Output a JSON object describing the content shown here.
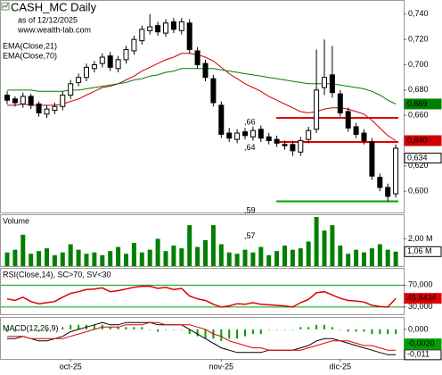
{
  "chart_data": [
    {
      "type": "candlestick",
      "title": "CASH_MC Daily",
      "subtitle": "as of 12/12/2025",
      "source": "www.wealth-lab.com",
      "categories": [
        null,
        null,
        null,
        null,
        null,
        null,
        null,
        null,
        "oct-25",
        null,
        null,
        null,
        null,
        null,
        null,
        null,
        null,
        null,
        null,
        null,
        null,
        null,
        null,
        null,
        null,
        null,
        null,
        "nov-25",
        null,
        null,
        null,
        null,
        null,
        null,
        null,
        null,
        null,
        null,
        null,
        null,
        null,
        null,
        "dic-25",
        null,
        null,
        null,
        null,
        null,
        null,
        null
      ],
      "open": [
        0.676,
        0.673,
        0.669,
        0.675,
        0.669,
        0.661,
        0.664,
        0.667,
        0.676,
        0.686,
        0.69,
        0.697,
        0.701,
        0.707,
        0.697,
        0.704,
        0.711,
        0.719,
        0.727,
        0.731,
        0.725,
        0.734,
        0.727,
        0.733,
        0.711,
        0.701,
        0.689,
        0.668,
        0.646,
        0.641,
        0.647,
        0.643,
        0.649,
        0.643,
        0.641,
        0.637,
        0.637,
        0.631,
        0.641,
        0.649,
        0.682,
        0.692,
        0.677,
        0.663,
        0.651,
        0.646,
        0.639,
        0.611,
        0.603,
        0.598
      ],
      "high": [
        0.679,
        0.675,
        0.678,
        0.677,
        0.671,
        0.668,
        0.67,
        0.679,
        0.688,
        0.693,
        0.701,
        0.703,
        0.709,
        0.71,
        0.707,
        0.715,
        0.723,
        0.731,
        0.74,
        0.734,
        0.736,
        0.737,
        0.737,
        0.736,
        0.714,
        0.704,
        0.692,
        0.671,
        0.65,
        0.649,
        0.65,
        0.651,
        0.652,
        0.646,
        0.644,
        0.64,
        0.64,
        0.643,
        0.651,
        0.712,
        0.72,
        0.715,
        0.68,
        0.666,
        0.654,
        0.649,
        0.642,
        0.614,
        0.606,
        0.637
      ],
      "low": [
        0.669,
        0.667,
        0.666,
        0.665,
        0.659,
        0.658,
        0.661,
        0.664,
        0.673,
        0.683,
        0.687,
        0.694,
        0.698,
        0.695,
        0.694,
        0.701,
        0.708,
        0.716,
        0.724,
        0.723,
        0.722,
        0.725,
        0.724,
        0.709,
        0.697,
        0.687,
        0.667,
        0.642,
        0.639,
        0.638,
        0.641,
        0.64,
        0.639,
        0.637,
        0.635,
        0.633,
        0.628,
        0.628,
        0.638,
        0.646,
        0.676,
        0.674,
        0.659,
        0.647,
        0.642,
        0.637,
        0.609,
        0.6,
        0.592,
        0.595
      ],
      "close": [
        0.672,
        0.67,
        0.675,
        0.668,
        0.662,
        0.665,
        0.667,
        0.676,
        0.685,
        0.69,
        0.698,
        0.7,
        0.706,
        0.698,
        0.704,
        0.712,
        0.72,
        0.728,
        0.73,
        0.726,
        0.733,
        0.728,
        0.734,
        0.712,
        0.7,
        0.69,
        0.67,
        0.645,
        0.642,
        0.646,
        0.644,
        0.648,
        0.642,
        0.64,
        0.638,
        0.636,
        0.632,
        0.64,
        0.648,
        0.68,
        0.69,
        0.678,
        0.662,
        0.65,
        0.645,
        0.64,
        0.612,
        0.603,
        0.596,
        0.634
      ],
      "last_label": "0,634",
      "ylim": [
        0.5832,
        0.7505
      ],
      "yticks": [
        {
          "value": 0.74,
          "label": "0,740"
        },
        {
          "value": 0.72,
          "label": "0,720"
        },
        {
          "value": 0.7,
          "label": "0,700"
        },
        {
          "value": 0.68,
          "label": "0,680"
        },
        {
          "value": 0.66,
          "label": "0,660"
        },
        {
          "value": 0.62,
          "label": "0,620"
        },
        {
          "value": 0.6,
          "label": "0,600"
        }
      ],
      "series": [
        {
          "name": "EMA(Close,21)",
          "color": "#d00000",
          "last_label": "0,640",
          "values": [
            0.668,
            0.668,
            0.669,
            0.668,
            0.668,
            0.668,
            0.668,
            0.669,
            0.671,
            0.673,
            0.676,
            0.679,
            0.682,
            0.683,
            0.685,
            0.688,
            0.691,
            0.695,
            0.698,
            0.701,
            0.704,
            0.706,
            0.709,
            0.709,
            0.708,
            0.706,
            0.703,
            0.698,
            0.693,
            0.689,
            0.685,
            0.682,
            0.679,
            0.675,
            0.672,
            0.669,
            0.666,
            0.663,
            0.662,
            0.663,
            0.665,
            0.666,
            0.666,
            0.665,
            0.663,
            0.661,
            0.656,
            0.65,
            0.644,
            0.64
          ]
        },
        {
          "name": "EMA(Close,70)",
          "color": "#008000",
          "last_label": "0,669",
          "values": [
            0.68,
            0.68,
            0.68,
            0.68,
            0.679,
            0.679,
            0.679,
            0.679,
            0.68,
            0.68,
            0.681,
            0.682,
            0.683,
            0.684,
            0.685,
            0.686,
            0.688,
            0.689,
            0.691,
            0.692,
            0.694,
            0.695,
            0.697,
            0.697,
            0.697,
            0.697,
            0.697,
            0.696,
            0.695,
            0.694,
            0.693,
            0.692,
            0.691,
            0.69,
            0.689,
            0.688,
            0.687,
            0.686,
            0.685,
            0.685,
            0.685,
            0.685,
            0.684,
            0.683,
            0.682,
            0.681,
            0.679,
            0.676,
            0.672,
            0.669
          ]
        }
      ],
      "levels": [
        {
          "value": 0.658,
          "color": "#e00000"
        },
        {
          "value": 0.639,
          "color": "#e00000"
        },
        {
          "value": 0.592,
          "color": "#00a000"
        }
      ],
      "annotations": [
        {
          "label": ",66",
          "value": 0.66
        },
        {
          "label": ",64",
          "value": 0.64
        },
        {
          "label": ",59",
          "value": 0.59
        },
        {
          "label": ",57",
          "value": 0.57
        }
      ]
    },
    {
      "type": "bar",
      "title": "Volume",
      "color": "#008000",
      "values": [
        1.0,
        1.2,
        2.3,
        0.9,
        1.1,
        1.3,
        0.8,
        1.0,
        1.6,
        1.2,
        0.9,
        1.0,
        0.8,
        1.1,
        1.4,
        0.9,
        1.7,
        1.0,
        1.2,
        2.0,
        1.1,
        1.5,
        1.3,
        3.0,
        1.4,
        1.9,
        3.0,
        1.6,
        1.0,
        0.9,
        1.2,
        1.0,
        1.4,
        0.8,
        1.1,
        1.5,
        1.2,
        1.3,
        1.8,
        3.6,
        2.6,
        3.0,
        1.5,
        0.9,
        1.2,
        1.0,
        1.3,
        1.6,
        1.2,
        1.06
      ],
      "last_label": "1,06 M",
      "ylim": [
        0,
        3.73
      ],
      "yticks": [
        {
          "value": 2,
          "label": "2,00 M"
        }
      ]
    },
    {
      "type": "line",
      "title": "RSI(Close,14), SC>70, SV<30",
      "color": "#e00000",
      "values": [
        45,
        42,
        48,
        40,
        36,
        38,
        40,
        48,
        55,
        58,
        62,
        63,
        65,
        58,
        60,
        63,
        66,
        68,
        68,
        64,
        66,
        62,
        64,
        50,
        45,
        42,
        35,
        30,
        32,
        36,
        35,
        38,
        35,
        34,
        33,
        32,
        30,
        38,
        44,
        56,
        58,
        52,
        46,
        42,
        41,
        39,
        33,
        31,
        30,
        45.8434
      ],
      "last_label": "45,8434",
      "ylim": [
        16.7,
        100
      ],
      "yticks": [
        {
          "value": 70,
          "label": "70,000"
        },
        {
          "value": 30,
          "label": "30,000"
        }
      ],
      "tick_color": "#00a000"
    },
    {
      "type": "macd",
      "title": "MACD(12,26,9)",
      "lines": [
        {
          "color": "#000000",
          "last_label": "-0,011",
          "values": [
            -0.004,
            -0.004,
            -0.003,
            -0.004,
            -0.005,
            -0.005,
            -0.004,
            -0.003,
            -0.001,
            0.0,
            0.001,
            0.002,
            0.003,
            0.002,
            0.002,
            0.003,
            0.003,
            0.003,
            0.003,
            0.002,
            0.002,
            0.002,
            0.002,
            0.0,
            -0.002,
            -0.004,
            -0.006,
            -0.008,
            -0.009,
            -0.01,
            -0.01,
            -0.01,
            -0.01,
            -0.009,
            -0.009,
            -0.009,
            -0.009,
            -0.008,
            -0.007,
            -0.005,
            -0.004,
            -0.004,
            -0.005,
            -0.006,
            -0.007,
            -0.008,
            -0.009,
            -0.01,
            -0.011,
            -0.011
          ]
        },
        {
          "color": "#e00000",
          "values": [
            -0.003,
            -0.003,
            -0.003,
            -0.004,
            -0.004,
            -0.004,
            -0.004,
            -0.004,
            -0.003,
            -0.002,
            -0.001,
            0.0,
            0.001,
            0.001,
            0.001,
            0.002,
            0.002,
            0.002,
            0.003,
            0.003,
            0.002,
            0.002,
            0.002,
            0.002,
            0.001,
            0.0,
            -0.002,
            -0.003,
            -0.005,
            -0.006,
            -0.007,
            -0.008,
            -0.008,
            -0.009,
            -0.009,
            -0.009,
            -0.009,
            -0.009,
            -0.008,
            -0.007,
            -0.006,
            -0.005,
            -0.005,
            -0.005,
            -0.006,
            -0.007,
            -0.007,
            -0.008,
            -0.009,
            -0.009
          ]
        }
      ],
      "histogram": {
        "color": "#00a000",
        "last_label": "-0,0020",
        "values": [
          -0.001,
          -0.001,
          0,
          0,
          -0.001,
          -0.001,
          0,
          0.001,
          0.002,
          0.002,
          0.002,
          0.002,
          0.002,
          0.001,
          0.001,
          0.001,
          0.001,
          0.001,
          0,
          -0.001,
          0,
          0,
          0,
          -0.002,
          -0.003,
          -0.004,
          -0.004,
          -0.005,
          -0.004,
          -0.004,
          -0.003,
          -0.002,
          -0.002,
          0,
          0,
          0,
          0,
          0.001,
          0.001,
          0.002,
          0.002,
          0.001,
          0,
          -0.001,
          -0.001,
          -0.001,
          -0.002,
          -0.002,
          -0.002,
          -0.002
        ]
      },
      "ylim": [
        -0.0128,
        0.005
      ],
      "yticks": [
        {
          "value": 0,
          "label": "0,000"
        }
      ]
    }
  ]
}
